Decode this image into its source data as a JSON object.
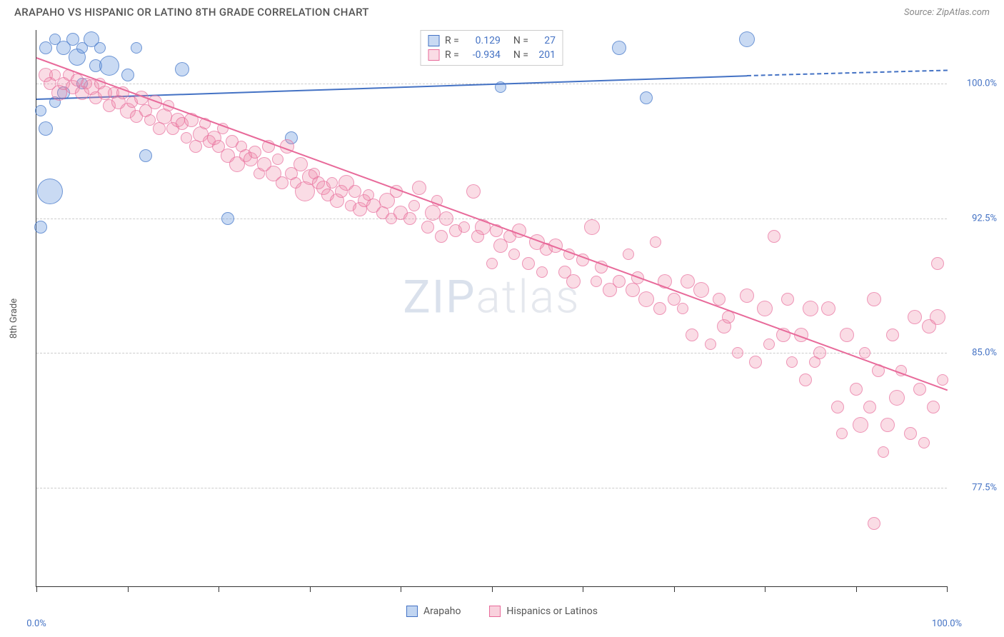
{
  "title": "ARAPAHO VS HISPANIC OR LATINO 8TH GRADE CORRELATION CHART",
  "source": "Source: ZipAtlas.com",
  "watermark_main": "ZIP",
  "watermark_sub": "atlas",
  "ylabel": "8th Grade",
  "chart": {
    "type": "scatter",
    "xlim": [
      0,
      100
    ],
    "ylim": [
      72,
      103
    ],
    "xtick_positions": [
      0,
      10,
      20,
      30,
      40,
      50,
      60,
      70,
      80,
      90,
      100
    ],
    "xtick_labels": {
      "0": "0.0%",
      "100": "100.0%"
    },
    "ytick_positions": [
      77.5,
      85.0,
      92.5,
      100.0
    ],
    "ytick_labels": [
      "77.5%",
      "85.0%",
      "92.5%",
      "100.0%"
    ],
    "grid_color": "#cccccc",
    "background_color": "#ffffff",
    "axis_color": "#333333"
  },
  "series": [
    {
      "name": "Arapaho",
      "color_fill": "rgba(100,150,220,0.35)",
      "color_stroke": "#4472c4",
      "r_value": "0.129",
      "n_value": "27",
      "trend": {
        "x0": 0,
        "y0": 99.2,
        "x1": 78,
        "y1": 100.5,
        "solid": true
      },
      "trend_ext": {
        "x0": 78,
        "y0": 100.5,
        "x1": 100,
        "y1": 100.8,
        "dashed": true
      },
      "points": [
        {
          "x": 1,
          "y": 102,
          "r": 9
        },
        {
          "x": 2,
          "y": 102.5,
          "r": 8
        },
        {
          "x": 3,
          "y": 102,
          "r": 10
        },
        {
          "x": 4,
          "y": 102.5,
          "r": 9
        },
        {
          "x": 4.5,
          "y": 101.5,
          "r": 12
        },
        {
          "x": 5,
          "y": 102,
          "r": 8
        },
        {
          "x": 6,
          "y": 102.5,
          "r": 11
        },
        {
          "x": 6.5,
          "y": 101,
          "r": 9
        },
        {
          "x": 7,
          "y": 102,
          "r": 8
        },
        {
          "x": 8,
          "y": 101,
          "r": 14
        },
        {
          "x": 0.5,
          "y": 98.5,
          "r": 8
        },
        {
          "x": 1,
          "y": 97.5,
          "r": 10
        },
        {
          "x": 1.5,
          "y": 94,
          "r": 18
        },
        {
          "x": 0.5,
          "y": 92,
          "r": 9
        },
        {
          "x": 2,
          "y": 99,
          "r": 8
        },
        {
          "x": 3,
          "y": 99.5,
          "r": 9
        },
        {
          "x": 5,
          "y": 100,
          "r": 8
        },
        {
          "x": 10,
          "y": 100.5,
          "r": 9
        },
        {
          "x": 11,
          "y": 102,
          "r": 8
        },
        {
          "x": 12,
          "y": 96,
          "r": 9
        },
        {
          "x": 16,
          "y": 100.8,
          "r": 10
        },
        {
          "x": 21,
          "y": 92.5,
          "r": 9
        },
        {
          "x": 28,
          "y": 97,
          "r": 9
        },
        {
          "x": 51,
          "y": 99.8,
          "r": 8
        },
        {
          "x": 64,
          "y": 102,
          "r": 10
        },
        {
          "x": 67,
          "y": 99.2,
          "r": 9
        },
        {
          "x": 78,
          "y": 102.5,
          "r": 11
        }
      ]
    },
    {
      "name": "Hispanics or Latinos",
      "color_fill": "rgba(240,140,170,0.3)",
      "color_stroke": "#e86a9a",
      "r_value": "-0.934",
      "n_value": "201",
      "trend": {
        "x0": 0,
        "y0": 101.5,
        "x1": 100,
        "y1": 83,
        "solid": true
      },
      "points": [
        {
          "x": 1,
          "y": 100.5,
          "r": 10
        },
        {
          "x": 1.5,
          "y": 100,
          "r": 9
        },
        {
          "x": 2,
          "y": 100.5,
          "r": 8
        },
        {
          "x": 2.5,
          "y": 99.5,
          "r": 11
        },
        {
          "x": 3,
          "y": 100,
          "r": 9
        },
        {
          "x": 3.5,
          "y": 100.5,
          "r": 8
        },
        {
          "x": 4,
          "y": 99.8,
          "r": 10
        },
        {
          "x": 4.5,
          "y": 100.2,
          "r": 9
        },
        {
          "x": 5,
          "y": 99.5,
          "r": 10
        },
        {
          "x": 5.5,
          "y": 100,
          "r": 8
        },
        {
          "x": 6,
          "y": 99.8,
          "r": 11
        },
        {
          "x": 6.5,
          "y": 99.2,
          "r": 9
        },
        {
          "x": 7,
          "y": 100,
          "r": 8
        },
        {
          "x": 7.5,
          "y": 99.5,
          "r": 10
        },
        {
          "x": 8,
          "y": 98.8,
          "r": 9
        },
        {
          "x": 8.5,
          "y": 99.5,
          "r": 8
        },
        {
          "x": 9,
          "y": 99,
          "r": 10
        },
        {
          "x": 9.5,
          "y": 99.5,
          "r": 9
        },
        {
          "x": 10,
          "y": 98.5,
          "r": 11
        },
        {
          "x": 10.5,
          "y": 99,
          "r": 8
        },
        {
          "x": 11,
          "y": 98.2,
          "r": 9
        },
        {
          "x": 11.5,
          "y": 99.2,
          "r": 10
        },
        {
          "x": 12,
          "y": 98.5,
          "r": 9
        },
        {
          "x": 12.5,
          "y": 98,
          "r": 8
        },
        {
          "x": 13,
          "y": 99,
          "r": 10
        },
        {
          "x": 13.5,
          "y": 97.5,
          "r": 9
        },
        {
          "x": 14,
          "y": 98.2,
          "r": 11
        },
        {
          "x": 14.5,
          "y": 98.8,
          "r": 8
        },
        {
          "x": 15,
          "y": 97.5,
          "r": 9
        },
        {
          "x": 15.5,
          "y": 98,
          "r": 10
        },
        {
          "x": 16,
          "y": 97.8,
          "r": 9
        },
        {
          "x": 16.5,
          "y": 97,
          "r": 8
        },
        {
          "x": 17,
          "y": 98,
          "r": 10
        },
        {
          "x": 17.5,
          "y": 96.5,
          "r": 9
        },
        {
          "x": 18,
          "y": 97.2,
          "r": 11
        },
        {
          "x": 18.5,
          "y": 97.8,
          "r": 8
        },
        {
          "x": 19,
          "y": 96.8,
          "r": 9
        },
        {
          "x": 19.5,
          "y": 97,
          "r": 10
        },
        {
          "x": 20,
          "y": 96.5,
          "r": 9
        },
        {
          "x": 20.5,
          "y": 97.5,
          "r": 8
        },
        {
          "x": 21,
          "y": 96,
          "r": 10
        },
        {
          "x": 21.5,
          "y": 96.8,
          "r": 9
        },
        {
          "x": 22,
          "y": 95.5,
          "r": 11
        },
        {
          "x": 22.5,
          "y": 96.5,
          "r": 8
        },
        {
          "x": 23,
          "y": 96,
          "r": 9
        },
        {
          "x": 23.5,
          "y": 95.8,
          "r": 10
        },
        {
          "x": 24,
          "y": 96.2,
          "r": 9
        },
        {
          "x": 24.5,
          "y": 95,
          "r": 8
        },
        {
          "x": 25,
          "y": 95.5,
          "r": 10
        },
        {
          "x": 25.5,
          "y": 96.5,
          "r": 9
        },
        {
          "x": 26,
          "y": 95,
          "r": 11
        },
        {
          "x": 26.5,
          "y": 95.8,
          "r": 8
        },
        {
          "x": 27,
          "y": 94.5,
          "r": 9
        },
        {
          "x": 27.5,
          "y": 96.5,
          "r": 10
        },
        {
          "x": 28,
          "y": 95,
          "r": 9
        },
        {
          "x": 28.5,
          "y": 94.5,
          "r": 8
        },
        {
          "x": 29,
          "y": 95.5,
          "r": 10
        },
        {
          "x": 29.5,
          "y": 94,
          "r": 14
        },
        {
          "x": 30,
          "y": 94.8,
          "r": 11
        },
        {
          "x": 30.5,
          "y": 95,
          "r": 8
        },
        {
          "x": 31,
          "y": 94.5,
          "r": 9
        },
        {
          "x": 31.5,
          "y": 94.2,
          "r": 10
        },
        {
          "x": 32,
          "y": 93.8,
          "r": 9
        },
        {
          "x": 32.5,
          "y": 94.5,
          "r": 8
        },
        {
          "x": 33,
          "y": 93.5,
          "r": 10
        },
        {
          "x": 33.5,
          "y": 94,
          "r": 9
        },
        {
          "x": 34,
          "y": 94.5,
          "r": 11
        },
        {
          "x": 34.5,
          "y": 93.2,
          "r": 8
        },
        {
          "x": 35,
          "y": 94,
          "r": 9
        },
        {
          "x": 35.5,
          "y": 93,
          "r": 10
        },
        {
          "x": 36,
          "y": 93.5,
          "r": 9
        },
        {
          "x": 36.5,
          "y": 93.8,
          "r": 8
        },
        {
          "x": 37,
          "y": 93.2,
          "r": 10
        },
        {
          "x": 38,
          "y": 92.8,
          "r": 9
        },
        {
          "x": 38.5,
          "y": 93.5,
          "r": 11
        },
        {
          "x": 39,
          "y": 92.5,
          "r": 8
        },
        {
          "x": 39.5,
          "y": 94,
          "r": 9
        },
        {
          "x": 40,
          "y": 92.8,
          "r": 10
        },
        {
          "x": 41,
          "y": 92.5,
          "r": 9
        },
        {
          "x": 41.5,
          "y": 93.2,
          "r": 8
        },
        {
          "x": 42,
          "y": 94.2,
          "r": 10
        },
        {
          "x": 43,
          "y": 92,
          "r": 9
        },
        {
          "x": 43.5,
          "y": 92.8,
          "r": 11
        },
        {
          "x": 44,
          "y": 93.5,
          "r": 8
        },
        {
          "x": 44.5,
          "y": 91.5,
          "r": 9
        },
        {
          "x": 45,
          "y": 92.5,
          "r": 10
        },
        {
          "x": 46,
          "y": 91.8,
          "r": 9
        },
        {
          "x": 47,
          "y": 92,
          "r": 8
        },
        {
          "x": 48,
          "y": 94,
          "r": 10
        },
        {
          "x": 48.5,
          "y": 91.5,
          "r": 9
        },
        {
          "x": 49,
          "y": 92,
          "r": 11
        },
        {
          "x": 50,
          "y": 90,
          "r": 8
        },
        {
          "x": 50.5,
          "y": 91.8,
          "r": 9
        },
        {
          "x": 51,
          "y": 91,
          "r": 10
        },
        {
          "x": 52,
          "y": 91.5,
          "r": 9
        },
        {
          "x": 52.5,
          "y": 90.5,
          "r": 8
        },
        {
          "x": 53,
          "y": 91.8,
          "r": 10
        },
        {
          "x": 54,
          "y": 90,
          "r": 9
        },
        {
          "x": 55,
          "y": 91.2,
          "r": 11
        },
        {
          "x": 55.5,
          "y": 89.5,
          "r": 8
        },
        {
          "x": 56,
          "y": 90.8,
          "r": 9
        },
        {
          "x": 57,
          "y": 91,
          "r": 10
        },
        {
          "x": 58,
          "y": 89.5,
          "r": 9
        },
        {
          "x": 58.5,
          "y": 90.5,
          "r": 8
        },
        {
          "x": 59,
          "y": 89,
          "r": 10
        },
        {
          "x": 60,
          "y": 90.2,
          "r": 9
        },
        {
          "x": 61,
          "y": 92,
          "r": 11
        },
        {
          "x": 61.5,
          "y": 89,
          "r": 8
        },
        {
          "x": 62,
          "y": 89.8,
          "r": 9
        },
        {
          "x": 63,
          "y": 88.5,
          "r": 10
        },
        {
          "x": 64,
          "y": 89,
          "r": 9
        },
        {
          "x": 65,
          "y": 90.5,
          "r": 8
        },
        {
          "x": 65.5,
          "y": 88.5,
          "r": 10
        },
        {
          "x": 66,
          "y": 89.2,
          "r": 9
        },
        {
          "x": 67,
          "y": 88,
          "r": 11
        },
        {
          "x": 68,
          "y": 91.2,
          "r": 8
        },
        {
          "x": 68.5,
          "y": 87.5,
          "r": 9
        },
        {
          "x": 69,
          "y": 89,
          "r": 10
        },
        {
          "x": 70,
          "y": 88,
          "r": 9
        },
        {
          "x": 71,
          "y": 87.5,
          "r": 8
        },
        {
          "x": 71.5,
          "y": 89,
          "r": 10
        },
        {
          "x": 72,
          "y": 86,
          "r": 9
        },
        {
          "x": 73,
          "y": 88.5,
          "r": 11
        },
        {
          "x": 74,
          "y": 85.5,
          "r": 8
        },
        {
          "x": 75,
          "y": 88,
          "r": 9
        },
        {
          "x": 75.5,
          "y": 86.5,
          "r": 10
        },
        {
          "x": 76,
          "y": 87,
          "r": 9
        },
        {
          "x": 77,
          "y": 85,
          "r": 8
        },
        {
          "x": 78,
          "y": 88.2,
          "r": 10
        },
        {
          "x": 79,
          "y": 84.5,
          "r": 9
        },
        {
          "x": 80,
          "y": 87.5,
          "r": 11
        },
        {
          "x": 80.5,
          "y": 85.5,
          "r": 8
        },
        {
          "x": 81,
          "y": 91.5,
          "r": 9
        },
        {
          "x": 82,
          "y": 86,
          "r": 10
        },
        {
          "x": 82.5,
          "y": 88,
          "r": 9
        },
        {
          "x": 83,
          "y": 84.5,
          "r": 8
        },
        {
          "x": 84,
          "y": 86,
          "r": 10
        },
        {
          "x": 84.5,
          "y": 83.5,
          "r": 9
        },
        {
          "x": 85,
          "y": 87.5,
          "r": 11
        },
        {
          "x": 85.5,
          "y": 84.5,
          "r": 8
        },
        {
          "x": 86,
          "y": 85,
          "r": 9
        },
        {
          "x": 87,
          "y": 87.5,
          "r": 10
        },
        {
          "x": 88,
          "y": 82,
          "r": 9
        },
        {
          "x": 88.5,
          "y": 80.5,
          "r": 8
        },
        {
          "x": 89,
          "y": 86,
          "r": 10
        },
        {
          "x": 90,
          "y": 83,
          "r": 9
        },
        {
          "x": 90.5,
          "y": 81,
          "r": 11
        },
        {
          "x": 91,
          "y": 85,
          "r": 8
        },
        {
          "x": 91.5,
          "y": 82,
          "r": 9
        },
        {
          "x": 92,
          "y": 88,
          "r": 10
        },
        {
          "x": 92.5,
          "y": 84,
          "r": 9
        },
        {
          "x": 93,
          "y": 79.5,
          "r": 8
        },
        {
          "x": 93.5,
          "y": 81,
          "r": 10
        },
        {
          "x": 94,
          "y": 86,
          "r": 9
        },
        {
          "x": 94.5,
          "y": 82.5,
          "r": 11
        },
        {
          "x": 95,
          "y": 84,
          "r": 8
        },
        {
          "x": 96,
          "y": 80.5,
          "r": 9
        },
        {
          "x": 96.5,
          "y": 87,
          "r": 10
        },
        {
          "x": 97,
          "y": 83,
          "r": 9
        },
        {
          "x": 97.5,
          "y": 80,
          "r": 8
        },
        {
          "x": 98,
          "y": 86.5,
          "r": 10
        },
        {
          "x": 98.5,
          "y": 82,
          "r": 9
        },
        {
          "x": 99,
          "y": 87,
          "r": 11
        },
        {
          "x": 99.5,
          "y": 83.5,
          "r": 8
        },
        {
          "x": 92,
          "y": 75.5,
          "r": 9
        },
        {
          "x": 99,
          "y": 90,
          "r": 9
        }
      ]
    }
  ],
  "legend": {
    "r_label": "R =",
    "n_label": "N =",
    "bottom": [
      {
        "label": "Arapaho",
        "color_fill": "rgba(100,150,220,0.4)",
        "color_stroke": "#4472c4"
      },
      {
        "label": "Hispanics or Latinos",
        "color_fill": "rgba(240,140,170,0.4)",
        "color_stroke": "#e86a9a"
      }
    ]
  }
}
